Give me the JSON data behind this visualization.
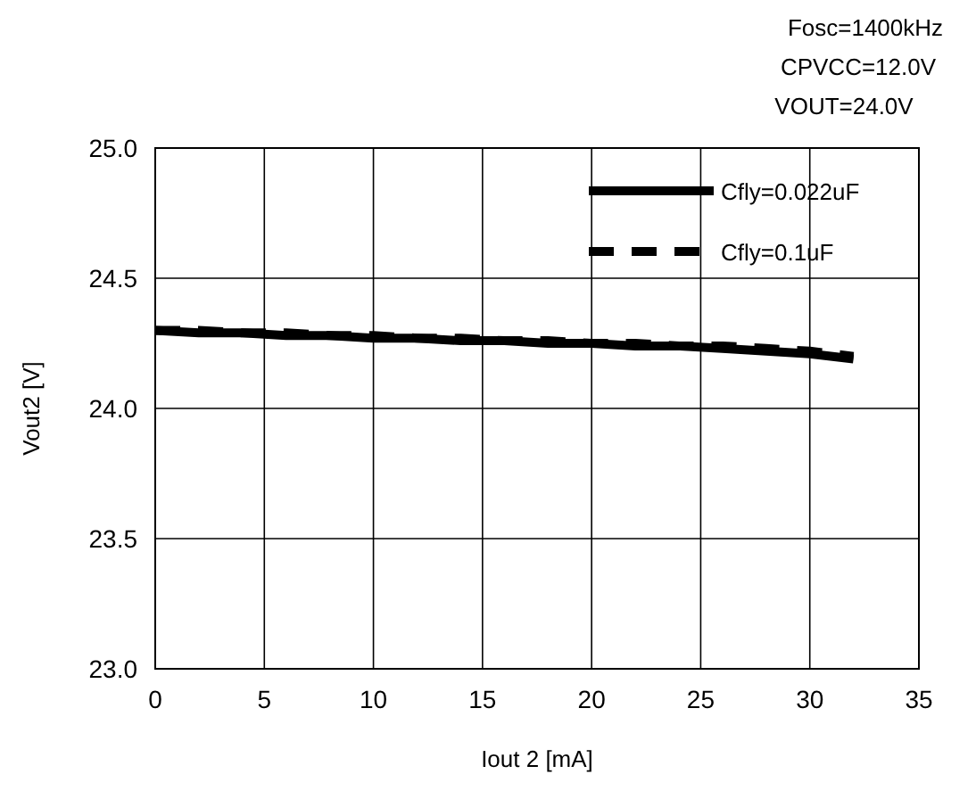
{
  "chart_data": {
    "type": "line",
    "xlabel": "Iout 2 [mA]",
    "ylabel": "Vout2 [V]",
    "annotations": [
      "Fosc=1400kHz",
      "CPVCC=12.0V",
      "VOUT=24.0V"
    ],
    "xlim": [
      0,
      35
    ],
    "xticks": [
      0,
      5,
      10,
      15,
      20,
      25,
      30,
      35
    ],
    "ylim": [
      23.0,
      25.0
    ],
    "yticks": [
      {
        "value": 23.0,
        "label": "23.0"
      },
      {
        "value": 23.5,
        "label": "23.5"
      },
      {
        "value": 24.0,
        "label": "24.0"
      },
      {
        "value": 24.5,
        "label": "24.5"
      },
      {
        "value": 25.0,
        "label": "25.0"
      }
    ],
    "grid": true,
    "legend": "top right",
    "x": [
      0,
      2,
      4,
      6,
      8,
      10,
      12,
      14,
      16,
      18,
      20,
      22,
      24,
      26,
      28,
      30,
      32
    ],
    "series": [
      {
        "name": "Cfly=0.022uF",
        "color": "#000000",
        "line_style": "solid",
        "values": [
          24.3,
          24.29,
          24.29,
          24.28,
          24.28,
          24.27,
          24.27,
          24.26,
          24.26,
          24.25,
          24.25,
          24.24,
          24.24,
          24.23,
          24.22,
          24.21,
          24.19
        ]
      },
      {
        "name": "Cfly=0.1uF",
        "color": "#000000",
        "line_style": "dashed",
        "values": [
          24.3,
          24.3,
          24.29,
          24.29,
          24.28,
          24.28,
          24.27,
          24.27,
          24.26,
          24.26,
          24.25,
          24.25,
          24.24,
          24.24,
          24.23,
          24.22,
          24.2
        ]
      }
    ]
  }
}
